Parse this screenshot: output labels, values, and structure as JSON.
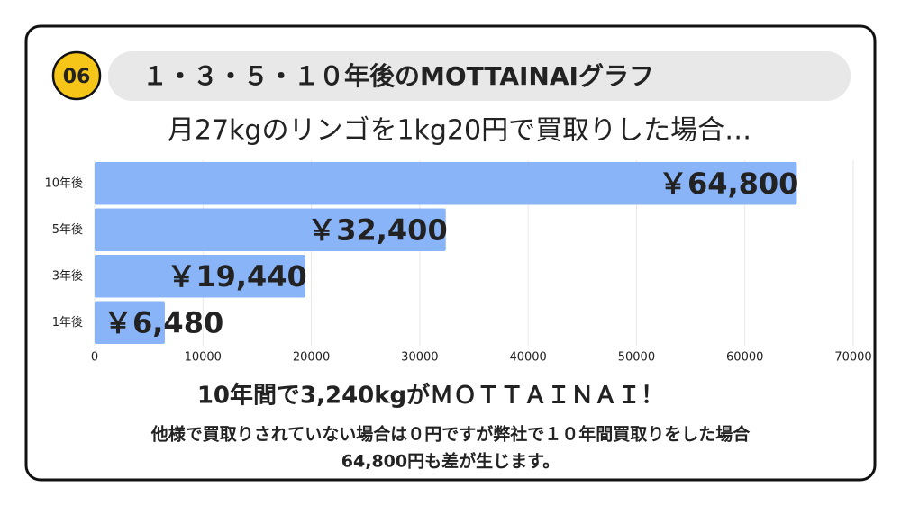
{
  "header": {
    "badge": "06",
    "title": "１・３・５・１０年後のMOTTAINAIグラフ"
  },
  "chart_data": {
    "type": "bar",
    "orientation": "horizontal",
    "title": "月27kgのリンゴを1kg20円で買取りした場合…",
    "categories": [
      "10年後",
      "5年後",
      "3年後",
      "1年後"
    ],
    "values": [
      64800,
      32400,
      19440,
      6480
    ],
    "value_labels": [
      "￥64,800",
      "￥32,400",
      "￥19,440",
      "￥6,480"
    ],
    "color": "#8ab4f8",
    "xlim": [
      0,
      70000
    ],
    "xticks": [
      0,
      10000,
      20000,
      30000,
      40000,
      50000,
      60000,
      70000
    ],
    "grid": true
  },
  "footer": {
    "headline": "10年間で3,240kgがＭＯＴＴＡＩＮＡＩ！",
    "lines": [
      "他様で買取りされていない場合は０円ですが弊社で１０年間買取りをした場合",
      "64,800円も差が生じます。"
    ]
  }
}
